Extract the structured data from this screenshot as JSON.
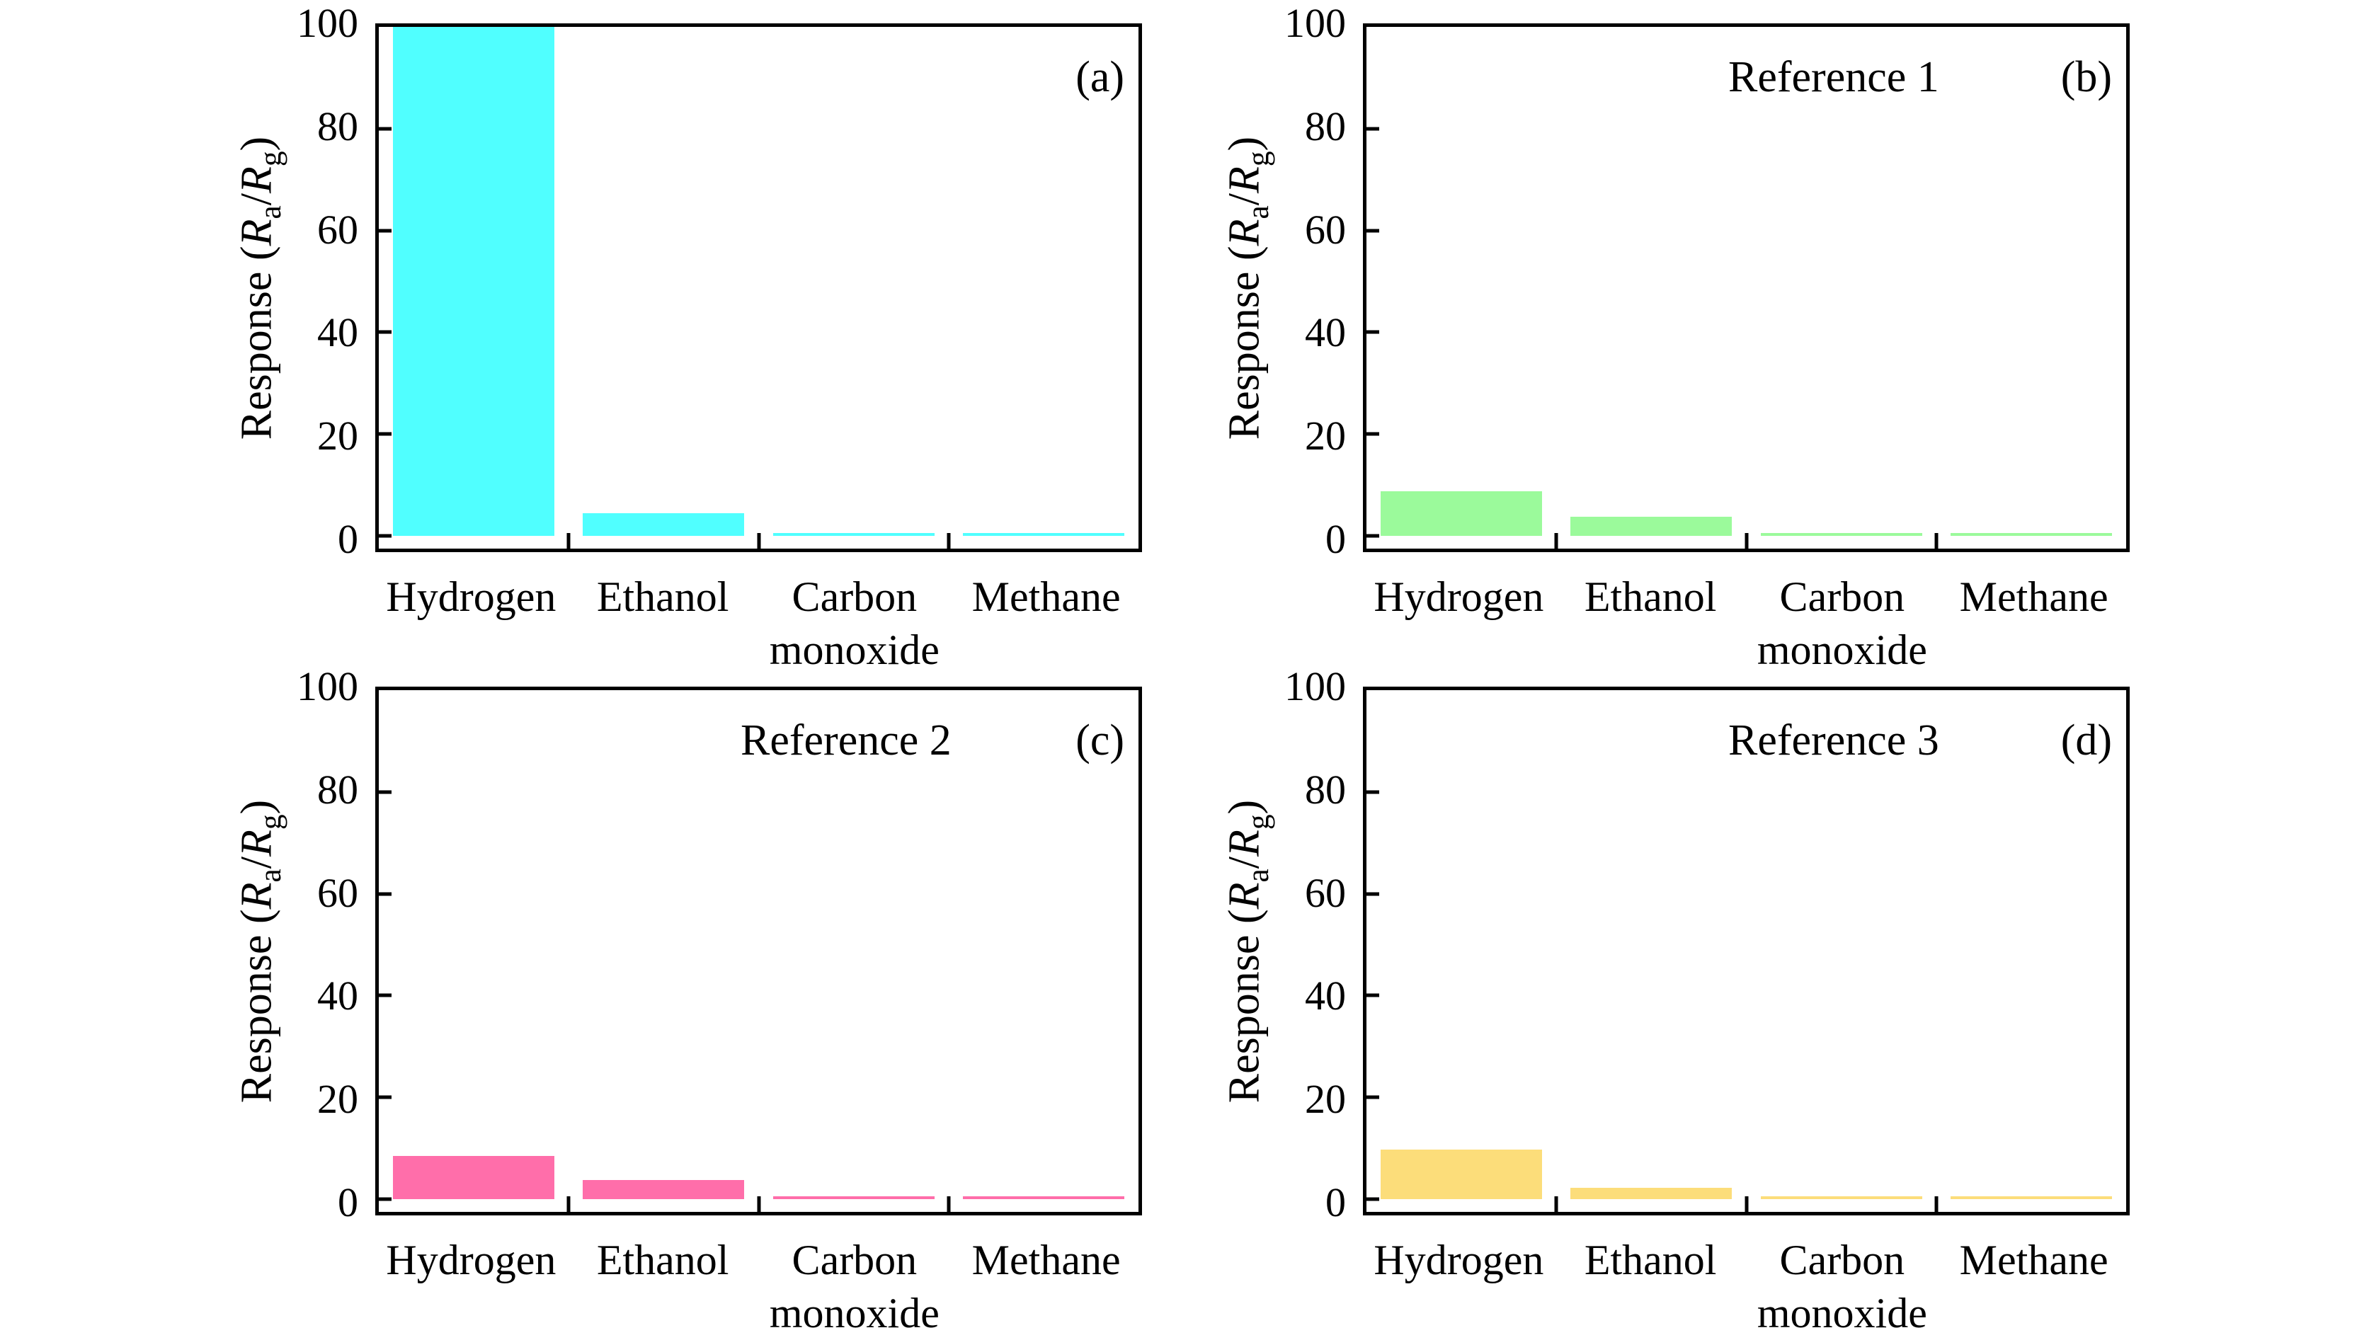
{
  "figure": {
    "background": "#ffffff",
    "frame_color": "#000000",
    "ylabel_text": "Response (Ra/Rg)",
    "ylabel_parts": [
      {
        "t": "Response (",
        "i": false,
        "sub": false
      },
      {
        "t": "R",
        "i": true,
        "sub": false
      },
      {
        "t": "a",
        "i": false,
        "sub": true
      },
      {
        "t": "/",
        "i": false,
        "sub": false
      },
      {
        "t": "R",
        "i": true,
        "sub": false
      },
      {
        "t": "g",
        "i": false,
        "sub": true
      },
      {
        "t": ")",
        "i": false,
        "sub": false
      }
    ]
  },
  "chart_data": [
    {
      "type": "bar",
      "panel_label": "(a)",
      "title": "",
      "categories": [
        "Hydrogen",
        "Ethanol",
        "Carbon monoxide",
        "Methane"
      ],
      "category_lines": [
        [
          "Hydrogen"
        ],
        [
          "Ethanol"
        ],
        [
          "Carbon",
          "monoxide"
        ],
        [
          "Methane"
        ]
      ],
      "values": [
        100,
        4.4,
        0.5,
        0.5
      ],
      "bar_color": "#50FFFF",
      "ylabel": "Response (Ra/Rg)",
      "ylim": [
        -2.5,
        100
      ],
      "yticks": [
        0,
        20,
        40,
        60,
        80,
        100
      ],
      "grid": false,
      "legend": "none"
    },
    {
      "type": "bar",
      "panel_label": "(b)",
      "title": "Reference 1",
      "categories": [
        "Hydrogen",
        "Ethanol",
        "Carbon monoxide",
        "Methane"
      ],
      "category_lines": [
        [
          "Hydrogen"
        ],
        [
          "Ethanol"
        ],
        [
          "Carbon",
          "monoxide"
        ],
        [
          "Methane"
        ]
      ],
      "values": [
        8.7,
        3.8,
        0.5,
        0.5
      ],
      "bar_color": "#9BFA9B",
      "ylabel": "Response (Ra/Rg)",
      "ylim": [
        -2.5,
        100
      ],
      "yticks": [
        0,
        20,
        40,
        60,
        80,
        100
      ],
      "grid": false,
      "legend": "none"
    },
    {
      "type": "bar",
      "panel_label": "(c)",
      "title": "Reference 2",
      "categories": [
        "Hydrogen",
        "Ethanol",
        "Carbon monoxide",
        "Methane"
      ],
      "category_lines": [
        [
          "Hydrogen"
        ],
        [
          "Ethanol"
        ],
        [
          "Carbon",
          "monoxide"
        ],
        [
          "Methane"
        ]
      ],
      "values": [
        8.5,
        3.7,
        0.5,
        0.5
      ],
      "bar_color": "#FF6EAA",
      "ylabel": "Response (Ra/Rg)",
      "ylim": [
        -2.5,
        100
      ],
      "yticks": [
        0,
        20,
        40,
        60,
        80,
        100
      ],
      "grid": false,
      "legend": "none"
    },
    {
      "type": "bar",
      "panel_label": "(d)",
      "title": "Reference 3",
      "categories": [
        "Hydrogen",
        "Ethanol",
        "Carbon monoxide",
        "Methane"
      ],
      "category_lines": [
        [
          "Hydrogen"
        ],
        [
          "Ethanol"
        ],
        [
          "Carbon",
          "monoxide"
        ],
        [
          "Methane"
        ]
      ],
      "values": [
        9.7,
        2.3,
        0.5,
        0.5
      ],
      "bar_color": "#FCDD7A",
      "ylabel": "Response (Ra/Rg)",
      "ylim": [
        -2.5,
        100
      ],
      "yticks": [
        0,
        20,
        40,
        60,
        80,
        100
      ],
      "grid": false,
      "legend": "none"
    }
  ]
}
